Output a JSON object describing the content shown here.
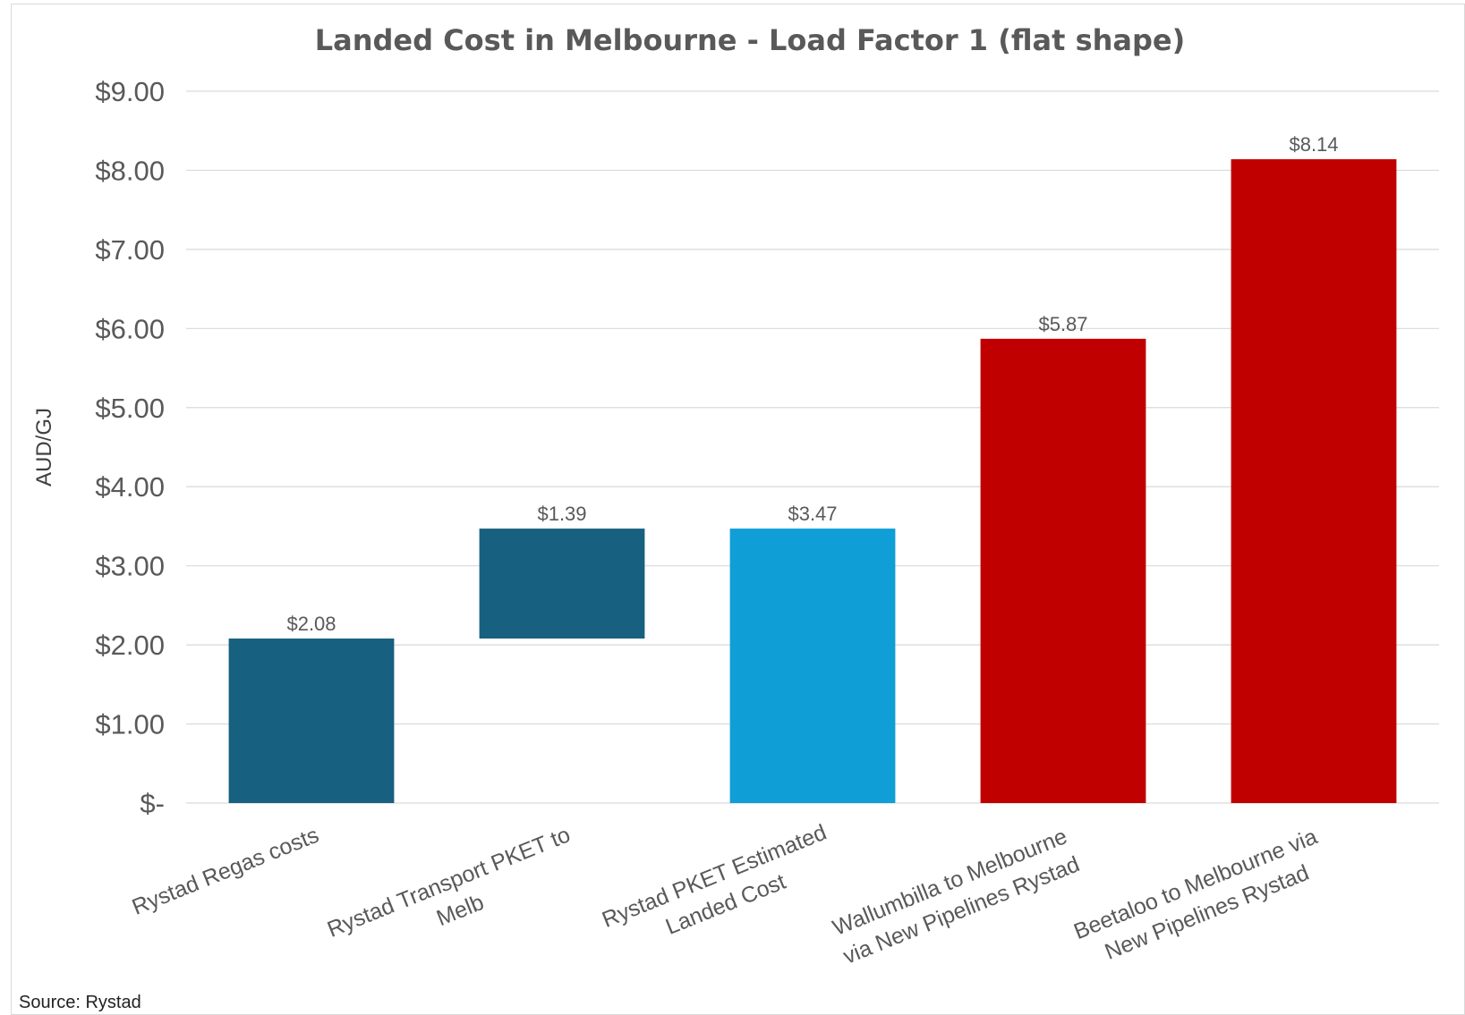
{
  "chart_data": {
    "type": "bar",
    "subtype": "waterfall",
    "title": "Landed Cost in Melbourne - Load Factor 1 (flat shape)",
    "xlabel": "",
    "ylabel": "AUD/GJ",
    "ylim": [
      0,
      9
    ],
    "yticks": [
      0,
      1,
      2,
      3,
      4,
      5,
      6,
      7,
      8,
      9
    ],
    "ytick_labels": [
      "$-",
      "$1.00",
      "$2.00",
      "$3.00",
      "$4.00",
      "$5.00",
      "$6.00",
      "$7.00",
      "$8.00",
      "$9.00"
    ],
    "grid": true,
    "legend": "none",
    "categories": [
      [
        "Rystad Regas costs"
      ],
      [
        "Rystad Transport PKET to",
        "Melb"
      ],
      [
        "Rystad PKET Estimated",
        "Landed Cost"
      ],
      [
        "Wallumbilla to Melbourne",
        "via New Pipelines Rystad"
      ],
      [
        "Beetaloo to Melbourne via",
        "New Pipelines Rystad"
      ]
    ],
    "bars": [
      {
        "base": 0,
        "value": 2.08,
        "label": "$2.08",
        "color": "#17607f"
      },
      {
        "base": 2.08,
        "value": 1.39,
        "label": "$1.39",
        "color": "#17607f"
      },
      {
        "base": 0,
        "value": 3.47,
        "label": "$3.47",
        "color": "#0f9ed5"
      },
      {
        "base": 0,
        "value": 5.87,
        "label": "$5.87",
        "color": "#c00000"
      },
      {
        "base": 0,
        "value": 8.14,
        "label": "$8.14",
        "color": "#c00000"
      }
    ]
  },
  "source": "Source: Rystad"
}
